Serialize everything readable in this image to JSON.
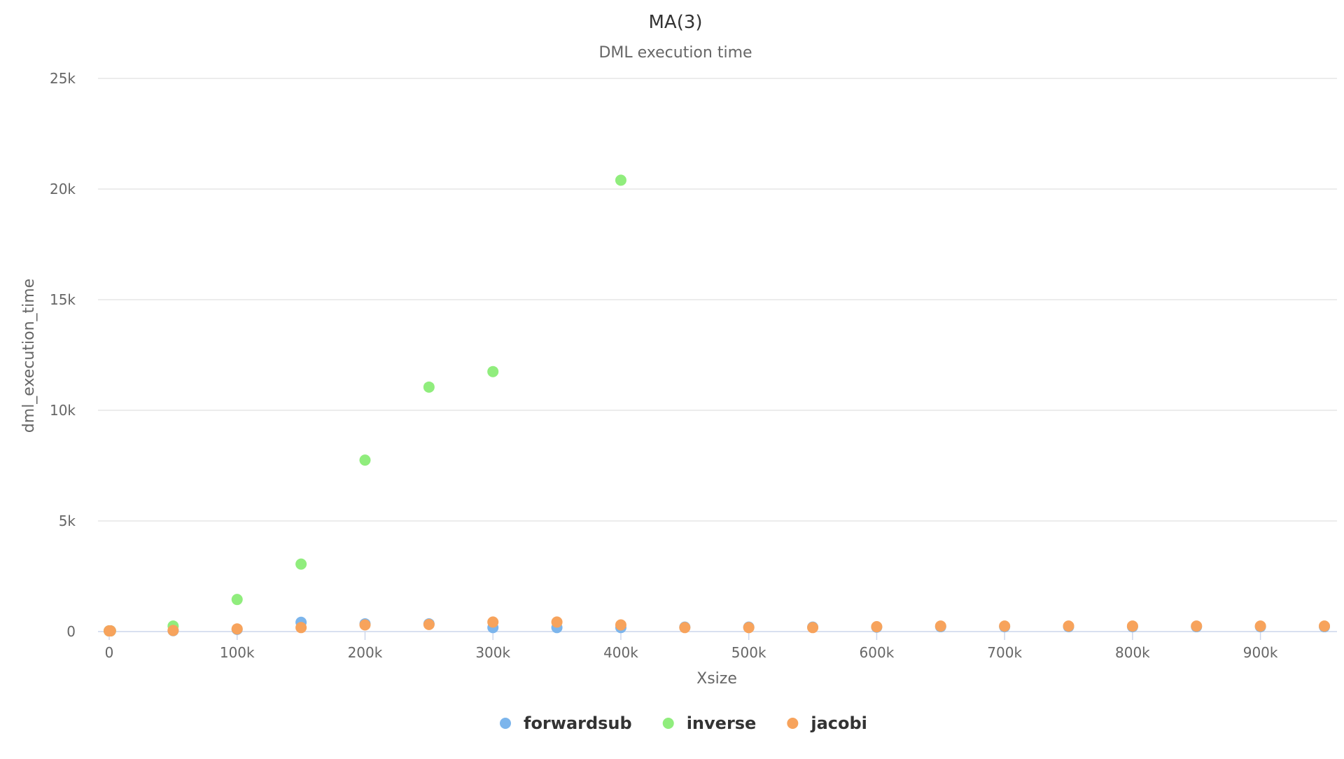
{
  "chart_data": {
    "type": "scatter",
    "title": "MA(3)",
    "subtitle": "DML execution time",
    "xlabel": "Xsize",
    "ylabel": "dml_execution_time",
    "xlim": [
      0,
      950000
    ],
    "ylim": [
      0,
      25000
    ],
    "x_ticks": [
      0,
      100000,
      200000,
      300000,
      400000,
      500000,
      600000,
      700000,
      800000,
      900000
    ],
    "x_tick_labels": [
      "0",
      "100k",
      "200k",
      "300k",
      "400k",
      "500k",
      "600k",
      "700k",
      "800k",
      "900k"
    ],
    "y_ticks": [
      0,
      5000,
      10000,
      15000,
      20000,
      25000
    ],
    "y_tick_labels": [
      "0",
      "5k",
      "10k",
      "15k",
      "20k",
      "25k"
    ],
    "grid": true,
    "legend_position": "bottom-center",
    "series": [
      {
        "name": "forwardsub",
        "color": "#7cb5ec",
        "points": [
          [
            0,
            30
          ],
          [
            1000,
            30
          ],
          [
            50000,
            40
          ],
          [
            100000,
            100
          ],
          [
            150000,
            420
          ],
          [
            200000,
            350
          ],
          [
            250000,
            350
          ],
          [
            300000,
            180
          ],
          [
            350000,
            180
          ],
          [
            400000,
            180
          ],
          [
            450000,
            200
          ],
          [
            500000,
            200
          ],
          [
            550000,
            200
          ],
          [
            600000,
            200
          ],
          [
            650000,
            220
          ],
          [
            700000,
            220
          ],
          [
            750000,
            220
          ],
          [
            800000,
            220
          ],
          [
            850000,
            220
          ],
          [
            900000,
            220
          ],
          [
            950000,
            220
          ]
        ]
      },
      {
        "name": "inverse",
        "color": "#90ed7d",
        "points": [
          [
            0,
            30
          ],
          [
            1000,
            30
          ],
          [
            50000,
            250
          ],
          [
            100000,
            1450
          ],
          [
            150000,
            3050
          ],
          [
            200000,
            7750
          ],
          [
            250000,
            11050
          ],
          [
            300000,
            11750
          ],
          [
            400000,
            20400
          ]
        ]
      },
      {
        "name": "jacobi",
        "color": "#f7a35c",
        "points": [
          [
            0,
            30
          ],
          [
            1000,
            30
          ],
          [
            50000,
            50
          ],
          [
            100000,
            120
          ],
          [
            150000,
            180
          ],
          [
            200000,
            300
          ],
          [
            250000,
            320
          ],
          [
            300000,
            430
          ],
          [
            350000,
            430
          ],
          [
            400000,
            300
          ],
          [
            450000,
            180
          ],
          [
            500000,
            180
          ],
          [
            550000,
            180
          ],
          [
            600000,
            220
          ],
          [
            650000,
            250
          ],
          [
            700000,
            250
          ],
          [
            750000,
            250
          ],
          [
            800000,
            250
          ],
          [
            850000,
            250
          ],
          [
            900000,
            250
          ],
          [
            950000,
            250
          ]
        ]
      }
    ]
  }
}
